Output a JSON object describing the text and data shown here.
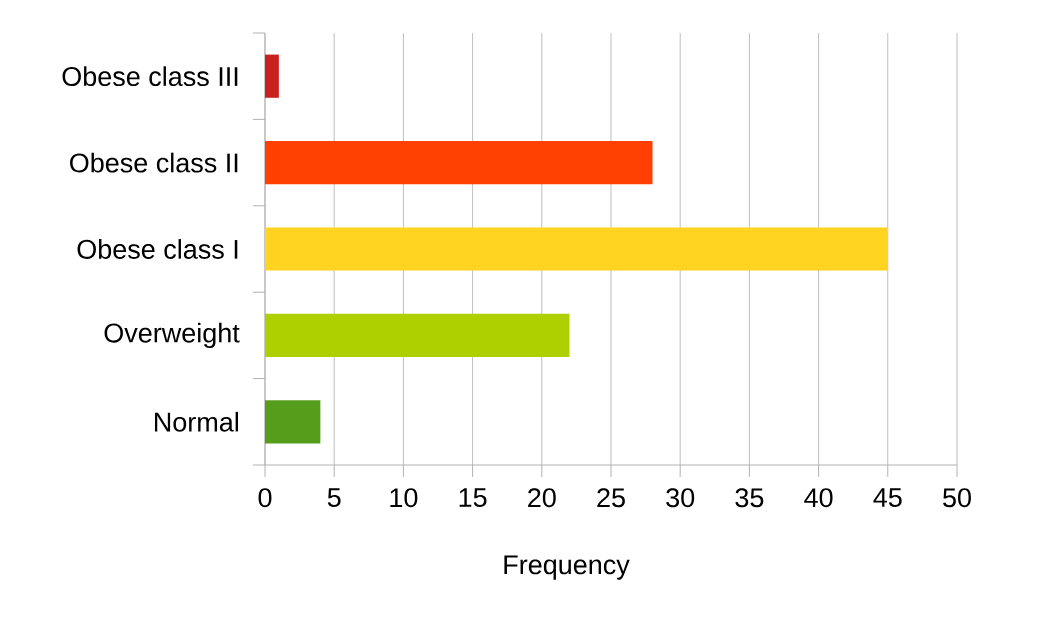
{
  "chart_data": {
    "type": "bar",
    "orientation": "horizontal",
    "xlabel": "Frequency",
    "categories": [
      "Obese class III",
      "Obese class II",
      "Obese class I",
      "Overweight",
      "Normal"
    ],
    "values": [
      1,
      28,
      45,
      22,
      4
    ],
    "colors": [
      "#c9211e",
      "#ff4000",
      "#ffd320",
      "#aecf00",
      "#579d1c"
    ],
    "xlim": [
      0,
      50
    ],
    "xticks": [
      0,
      5,
      10,
      15,
      20,
      25,
      30,
      35,
      40,
      45,
      50
    ],
    "grid": "x"
  }
}
